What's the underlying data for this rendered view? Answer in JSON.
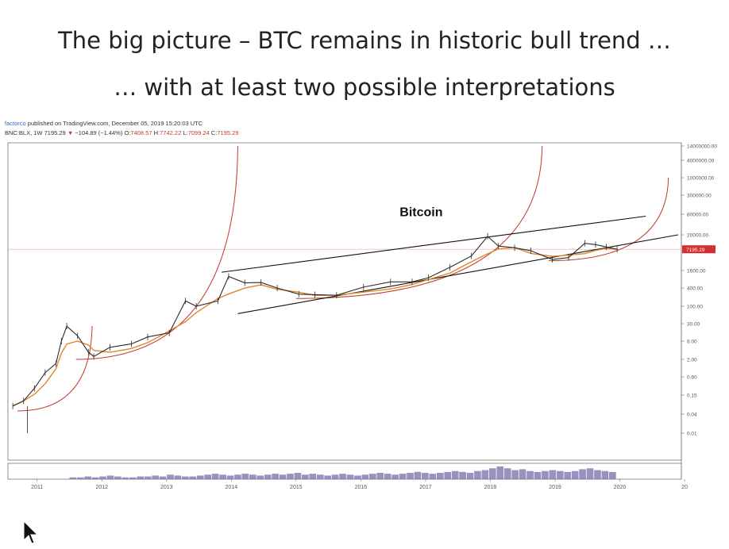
{
  "slide": {
    "title_line1": "The big picture – BTC remains in historic bull trend …",
    "title_line2": "… with at least two possible interpretations"
  },
  "header": {
    "author": "factorco",
    "published": " published on TradingView.com, December 05, 2019 15:20:03 UTC",
    "symbol": "BNC:BLX, 1W  7195.29",
    "arrow": "▼",
    "change": "−104.89 (−1.44%)",
    "o_label": " O:",
    "o_value": "7408.57",
    "h_label": " H:",
    "h_value": "7742.22",
    "l_label": " L:",
    "l_value": "7099.24",
    "c_label": " C:",
    "c_value": "7195.29"
  },
  "colors": {
    "price_line": "#2b2b2b",
    "ma_line": "#e0862b",
    "curve": "#c0392b",
    "channel": "#111111",
    "price_tag": "#d42f2f",
    "volume": "#7a6ca8"
  },
  "chart_data": {
    "type": "line",
    "annotation": "Bitcoin",
    "y_scale": "log",
    "y_ticks": [
      "14000000.00",
      "4000000.00",
      "1000000.00",
      "300000.00",
      "80000.00",
      "20000.00",
      "1600.00",
      "400.00",
      "100.00",
      "30.00",
      "8.00",
      "2.00",
      "0.60",
      "0.15",
      "0.04",
      "0.01"
    ],
    "x_ticks": [
      "2011",
      "2012",
      "2013",
      "2014",
      "2015",
      "2016",
      "2017",
      "2018",
      "2019",
      "2020",
      "20"
    ],
    "last_price_label": "7195.29",
    "series": [
      {
        "x": [
          "2010-08",
          "2010-10",
          "2010-12",
          "2011-02",
          "2011-04",
          "2011-05",
          "2011-06",
          "2011-08",
          "2011-10",
          "2011-11",
          "2012-02",
          "2012-06",
          "2012-09",
          "2013-01",
          "2013-04",
          "2013-06",
          "2013-10",
          "2013-12",
          "2014-03",
          "2014-06",
          "2014-09",
          "2015-01",
          "2015-04",
          "2015-08",
          "2016-01",
          "2016-06",
          "2016-10",
          "2017-01",
          "2017-05",
          "2017-09",
          "2017-12",
          "2018-02",
          "2018-05",
          "2018-08",
          "2018-12",
          "2019-03",
          "2019-06",
          "2019-08",
          "2019-10",
          "2019-12"
        ],
        "y": [
          0.07,
          0.1,
          0.25,
          0.8,
          1.5,
          8,
          25,
          12,
          3.5,
          2.5,
          5,
          6.5,
          11,
          15,
          150,
          100,
          150,
          1000,
          600,
          620,
          400,
          250,
          240,
          230,
          430,
          650,
          650,
          900,
          2000,
          4500,
          18000,
          9000,
          8000,
          6500,
          3500,
          4000,
          11000,
          10000,
          8500,
          7195
        ]
      }
    ]
  },
  "volume_bars": [
    2,
    2,
    3,
    2,
    3,
    4,
    3,
    2,
    2,
    3,
    3,
    4,
    3,
    5,
    4,
    3,
    3,
    4,
    5,
    6,
    5,
    4,
    5,
    6,
    5,
    4,
    5,
    6,
    5,
    6,
    7,
    5,
    6,
    5,
    4,
    5,
    6,
    5,
    4,
    5,
    6,
    7,
    6,
    5,
    6,
    7,
    8,
    7,
    6,
    7,
    8,
    9,
    8,
    7,
    9,
    10,
    12,
    14,
    12,
    10,
    11,
    9,
    8,
    9,
    10,
    9,
    8,
    9,
    11,
    12,
    10,
    9,
    8
  ]
}
